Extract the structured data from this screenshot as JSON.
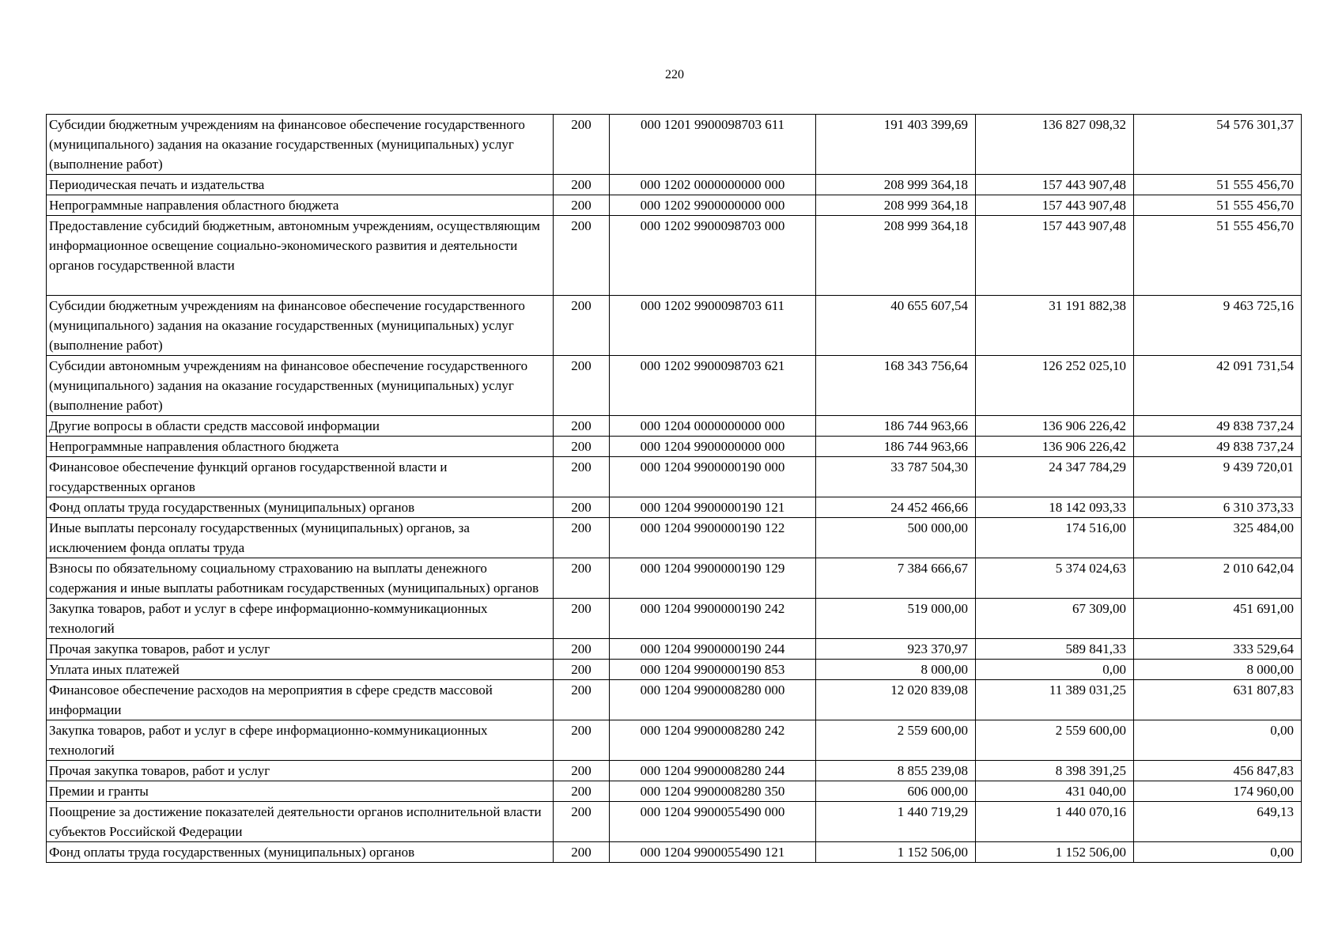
{
  "page_number": "220",
  "rows": [
    {
      "name": "Субсидии бюджетным учреждениям на финансовое обеспечение государственного (муниципального) задания на оказание государственных (муниципальных) услуг (выполнение работ)",
      "g": "200",
      "code": "000 1201 9900098703 611",
      "a": "191 403 399,69",
      "b": "136 827 098,32",
      "c": "54 576 301,37"
    },
    {
      "name": "Периодическая печать и издательства",
      "g": "200",
      "code": "000 1202 0000000000 000",
      "a": "208 999 364,18",
      "b": "157 443 907,48",
      "c": "51 555 456,70"
    },
    {
      "name": "Непрограммные направления областного бюджета",
      "g": "200",
      "code": "000 1202 9900000000 000",
      "a": "208 999 364,18",
      "b": "157 443 907,48",
      "c": "51 555 456,70"
    },
    {
      "name": "Предоставление субсидий бюджетным, автономным учреждениям, осуществляющим информационное освещение социально-экономического развития и деятельности органов государственной власти",
      "g": "200",
      "code": "000 1202 9900098703 000",
      "a": "208 999 364,18",
      "b": "157 443 907,48",
      "c": "51 555 456,70",
      "extra": true
    },
    {
      "name": "Субсидии бюджетным учреждениям на финансовое обеспечение государственного (муниципального) задания на оказание государственных (муниципальных) услуг (выполнение работ)",
      "g": "200",
      "code": "000 1202 9900098703 611",
      "a": "40 655 607,54",
      "b": "31 191 882,38",
      "c": "9 463 725,16"
    },
    {
      "name": "Субсидии автономным учреждениям на финансовое обеспечение государственного (муниципального) задания на оказание государственных (муниципальных) услуг (выполнение работ)",
      "g": "200",
      "code": "000 1202 9900098703 621",
      "a": "168 343 756,64",
      "b": "126 252 025,10",
      "c": "42 091 731,54"
    },
    {
      "name": "Другие вопросы в области средств массовой информации",
      "g": "200",
      "code": "000 1204 0000000000 000",
      "a": "186 744 963,66",
      "b": "136 906 226,42",
      "c": "49 838 737,24"
    },
    {
      "name": "Непрограммные направления областного бюджета",
      "g": "200",
      "code": "000 1204 9900000000 000",
      "a": "186 744 963,66",
      "b": "136 906 226,42",
      "c": "49 838 737,24"
    },
    {
      "name": "Финансовое обеспечение функций органов государственной власти и государственных органов",
      "g": "200",
      "code": "000 1204 9900000190 000",
      "a": "33 787 504,30",
      "b": "24 347 784,29",
      "c": "9 439 720,01"
    },
    {
      "name": "Фонд оплаты труда государственных (муниципальных) органов",
      "g": "200",
      "code": "000 1204 9900000190 121",
      "a": "24 452 466,66",
      "b": "18 142 093,33",
      "c": "6 310 373,33"
    },
    {
      "name": "Иные выплаты персоналу государственных (муниципальных) органов, за исключением фонда оплаты труда",
      "g": "200",
      "code": "000 1204 9900000190 122",
      "a": "500 000,00",
      "b": "174 516,00",
      "c": "325 484,00"
    },
    {
      "name": "Взносы по обязательному социальному страхованию на выплаты денежного содержания и иные выплаты работникам государственных (муниципальных) органов",
      "g": "200",
      "code": "000 1204 9900000190 129",
      "a": "7 384 666,67",
      "b": "5 374 024,63",
      "c": "2 010 642,04"
    },
    {
      "name": "Закупка товаров, работ и услуг в сфере информационно-коммуникационных технологий",
      "g": "200",
      "code": "000 1204 9900000190 242",
      "a": "519 000,00",
      "b": "67 309,00",
      "c": "451 691,00"
    },
    {
      "name": "Прочая закупка товаров, работ и услуг",
      "g": "200",
      "code": "000 1204 9900000190 244",
      "a": "923 370,97",
      "b": "589 841,33",
      "c": "333 529,64"
    },
    {
      "name": "Уплата иных платежей",
      "g": "200",
      "code": "000 1204 9900000190 853",
      "a": "8 000,00",
      "b": "0,00",
      "c": "8 000,00"
    },
    {
      "name": "Финансовое обеспечение расходов на мероприятия в сфере средств массовой информации",
      "g": "200",
      "code": "000 1204 9900008280 000",
      "a": "12 020 839,08",
      "b": "11 389 031,25",
      "c": "631 807,83"
    },
    {
      "name": "Закупка товаров, работ и услуг в сфере информационно-коммуникационных технологий",
      "g": "200",
      "code": "000 1204 9900008280 242",
      "a": "2 559 600,00",
      "b": "2 559 600,00",
      "c": "0,00"
    },
    {
      "name": "Прочая закупка товаров, работ и услуг",
      "g": "200",
      "code": "000 1204 9900008280 244",
      "a": "8 855 239,08",
      "b": "8 398 391,25",
      "c": "456 847,83"
    },
    {
      "name": "Премии и гранты",
      "g": "200",
      "code": "000 1204 9900008280 350",
      "a": "606 000,00",
      "b": "431 040,00",
      "c": "174 960,00"
    },
    {
      "name": "Поощрение за достижение показателей деятельности органов исполнительной власти субъектов Российской Федерации",
      "g": "200",
      "code": "000 1204 9900055490 000",
      "a": "1 440 719,29",
      "b": "1 440 070,16",
      "c": "649,13"
    },
    {
      "name": "Фонд оплаты труда государственных (муниципальных) органов",
      "g": "200",
      "code": "000 1204 9900055490 121",
      "a": "1 152 506,00",
      "b": "1 152 506,00",
      "c": "0,00"
    }
  ]
}
